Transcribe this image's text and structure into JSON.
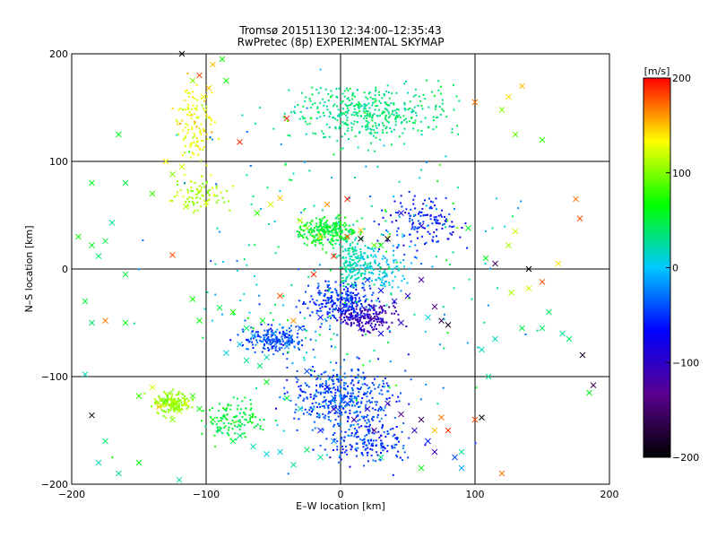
{
  "chart_data": {
    "type": "scatter",
    "title": "Tromsø 20151130 12:34:00–12:35:43",
    "subtitle": "RwPretec (8p) EXPERIMENTAL SKYMAP",
    "xlabel": "E–W location [km]",
    "ylabel": "N–S location [km]",
    "xlim": [
      -200,
      200
    ],
    "ylim": [
      -200,
      200
    ],
    "xticks": [
      -200,
      -100,
      0,
      100,
      200
    ],
    "yticks": [
      -200,
      -100,
      0,
      100,
      200
    ],
    "xtick_labels": [
      "−200",
      "−100",
      "0",
      "100",
      "200"
    ],
    "ytick_labels": [
      "−200",
      "−100",
      "0",
      "100",
      "200"
    ],
    "grid": true,
    "colorbar": {
      "label": "[m/s]",
      "range": [
        -200,
        200
      ],
      "ticks": [
        200,
        100,
        0,
        -100,
        -200
      ],
      "tick_labels": [
        "200",
        "100",
        "0",
        "−100",
        "−200"
      ],
      "colormap": [
        "#000000",
        "#5a0090",
        "#0000ff",
        "#00c8ff",
        "#00ff00",
        "#ffff00",
        "#ff0000"
      ]
    },
    "series": [
      {
        "marker": "x",
        "points": [
          [
            -118,
            200,
            -200
          ],
          [
            -105,
            180,
            180
          ],
          [
            -95,
            190,
            150
          ],
          [
            -98,
            168,
            150
          ],
          [
            -102,
            160,
            130
          ],
          [
            -88,
            195,
            70
          ],
          [
            -40,
            140,
            190
          ],
          [
            100,
            155,
            170
          ],
          [
            125,
            160,
            140
          ],
          [
            135,
            170,
            150
          ],
          [
            -75,
            118,
            190
          ],
          [
            120,
            148,
            100
          ],
          [
            130,
            125,
            90
          ],
          [
            150,
            120,
            80
          ],
          [
            -165,
            125,
            60
          ],
          [
            -160,
            80,
            50
          ],
          [
            -140,
            70,
            80
          ],
          [
            -130,
            100,
            130
          ],
          [
            -125,
            88,
            100
          ],
          [
            -118,
            95,
            120
          ],
          [
            -85,
            175,
            70
          ],
          [
            -110,
            175,
            100
          ],
          [
            175,
            65,
            170
          ],
          [
            178,
            47,
            180
          ],
          [
            130,
            35,
            120
          ],
          [
            125,
            22,
            110
          ],
          [
            108,
            10,
            60
          ],
          [
            -185,
            22,
            60
          ],
          [
            -180,
            12,
            40
          ],
          [
            -175,
            26,
            50
          ],
          [
            -160,
            -5,
            50
          ],
          [
            -125,
            13,
            180
          ],
          [
            -190,
            -30,
            50
          ],
          [
            -185,
            -50,
            40
          ],
          [
            -175,
            -48,
            170
          ],
          [
            -160,
            -50,
            60
          ],
          [
            -110,
            -28,
            70
          ],
          [
            -105,
            -48,
            70
          ],
          [
            -90,
            -36,
            50
          ],
          [
            -80,
            -40,
            70
          ],
          [
            -70,
            -55,
            40
          ],
          [
            -58,
            -48,
            60
          ],
          [
            -45,
            -25,
            180
          ],
          [
            -35,
            -48,
            160
          ],
          [
            -20,
            -5,
            190
          ],
          [
            -5,
            12,
            190
          ],
          [
            5,
            30,
            180
          ],
          [
            15,
            28,
            -200
          ],
          [
            30,
            22,
            60
          ],
          [
            -25,
            38,
            100
          ],
          [
            -30,
            45,
            120
          ],
          [
            -15,
            30,
            140
          ],
          [
            10,
            -15,
            20
          ],
          [
            20,
            -10,
            -50
          ],
          [
            30,
            -20,
            -60
          ],
          [
            40,
            -30,
            -80
          ],
          [
            50,
            -25,
            -100
          ],
          [
            60,
            -10,
            -120
          ],
          [
            70,
            -35,
            -140
          ],
          [
            75,
            -48,
            -160
          ],
          [
            80,
            -52,
            -180
          ],
          [
            65,
            -45,
            10
          ],
          [
            45,
            -50,
            -90
          ],
          [
            30,
            -60,
            -70
          ],
          [
            15,
            -55,
            -100
          ],
          [
            0,
            -38,
            -80
          ],
          [
            -15,
            -45,
            -60
          ],
          [
            -30,
            -55,
            -40
          ],
          [
            -50,
            -60,
            -20
          ],
          [
            -65,
            -62,
            -10
          ],
          [
            -75,
            -70,
            -5
          ],
          [
            -85,
            -78,
            10
          ],
          [
            -70,
            -85,
            30
          ],
          [
            -55,
            -82,
            20
          ],
          [
            -40,
            -72,
            -20
          ],
          [
            -25,
            -95,
            -40
          ],
          [
            -10,
            -110,
            -60
          ],
          [
            -5,
            -120,
            -30
          ],
          [
            5,
            -125,
            -50
          ],
          [
            20,
            -130,
            -90
          ],
          [
            35,
            -125,
            -110
          ],
          [
            45,
            -135,
            -130
          ],
          [
            55,
            -150,
            -100
          ],
          [
            65,
            -160,
            -60
          ],
          [
            70,
            -170,
            -110
          ],
          [
            85,
            -175,
            -40
          ],
          [
            90,
            -170,
            30
          ],
          [
            100,
            -140,
            180
          ],
          [
            105,
            -138,
            -200
          ],
          [
            75,
            -138,
            170
          ],
          [
            80,
            -150,
            190
          ],
          [
            70,
            -150,
            150
          ],
          [
            60,
            -140,
            -160
          ],
          [
            90,
            -185,
            -10
          ],
          [
            120,
            -190,
            170
          ],
          [
            -150,
            -118,
            80
          ],
          [
            -140,
            -110,
            120
          ],
          [
            -135,
            -128,
            150
          ],
          [
            -130,
            -122,
            90
          ],
          [
            -125,
            -140,
            100
          ],
          [
            -120,
            -132,
            110
          ],
          [
            -115,
            -125,
            130
          ],
          [
            -110,
            -118,
            80
          ],
          [
            -105,
            -130,
            70
          ],
          [
            -95,
            -140,
            60
          ],
          [
            -90,
            -150,
            40
          ],
          [
            -80,
            -160,
            50
          ],
          [
            -75,
            -155,
            30
          ],
          [
            -65,
            -165,
            20
          ],
          [
            -55,
            -172,
            10
          ],
          [
            -45,
            -170,
            5
          ],
          [
            -35,
            -182,
            25
          ],
          [
            -25,
            -168,
            40
          ],
          [
            -15,
            -175,
            30
          ],
          [
            -5,
            -160,
            -20
          ],
          [
            -185,
            -136,
            -200
          ],
          [
            -175,
            -160,
            40
          ],
          [
            -180,
            -180,
            20
          ],
          [
            -165,
            -190,
            30
          ],
          [
            -150,
            -180,
            60
          ],
          [
            -120,
            -196,
            20
          ],
          [
            180,
            -80,
            -180
          ],
          [
            188,
            -108,
            -160
          ],
          [
            185,
            -115,
            60
          ],
          [
            -190,
            -98,
            20
          ],
          [
            150,
            -55,
            40
          ],
          [
            165,
            -60,
            30
          ],
          [
            170,
            -65,
            40
          ],
          [
            155,
            -40,
            40
          ],
          [
            135,
            -55,
            50
          ],
          [
            115,
            -65,
            20
          ],
          [
            105,
            -75,
            20
          ],
          [
            110,
            -100,
            30
          ],
          [
            -5,
            -130,
            -110
          ],
          [
            10,
            -140,
            -120
          ],
          [
            25,
            -150,
            -140
          ],
          [
            -15,
            -150,
            -60
          ],
          [
            30,
            -175,
            30
          ],
          [
            -30,
            -130,
            20
          ],
          [
            -40,
            -120,
            50
          ],
          [
            -55,
            -105,
            60
          ],
          [
            -60,
            -90,
            40
          ],
          [
            60,
            -185,
            60
          ],
          [
            150,
            -12,
            180
          ],
          [
            140,
            -18,
            120
          ],
          [
            127,
            -22,
            110
          ],
          [
            95,
            38,
            60
          ],
          [
            115,
            5,
            -150
          ],
          [
            140,
            0,
            -200
          ],
          [
            162,
            5,
            140
          ],
          [
            -45,
            66,
            150
          ],
          [
            -52,
            60,
            120
          ],
          [
            -62,
            52,
            80
          ],
          [
            15,
            36,
            150
          ],
          [
            25,
            22,
            90
          ],
          [
            45,
            52,
            -80
          ],
          [
            60,
            40,
            -90
          ],
          [
            35,
            28,
            -200
          ],
          [
            -10,
            60,
            160
          ],
          [
            5,
            65,
            190
          ],
          [
            -100,
            62,
            120
          ],
          [
            -115,
            58,
            110
          ],
          [
            -170,
            43,
            30
          ],
          [
            -185,
            80,
            60
          ],
          [
            -195,
            30,
            70
          ]
        ]
      }
    ]
  }
}
